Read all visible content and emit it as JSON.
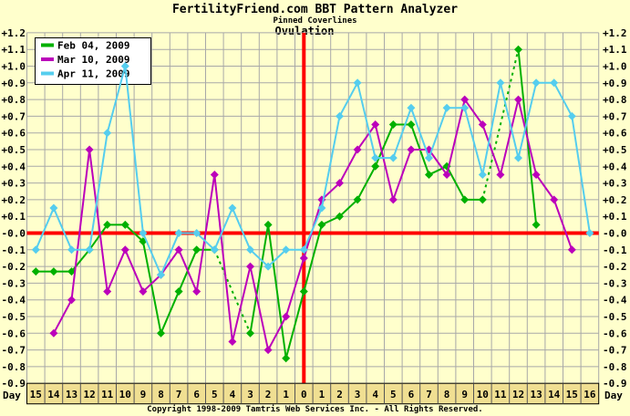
{
  "header": {
    "title": "FertilityFriend.com BBT Pattern Analyzer",
    "subtitle": "Pinned Coverlines",
    "ovulation_label": "Ovulation"
  },
  "axes": {
    "day_label": "Day",
    "y_tick_labels": [
      "+1.2",
      "+1.1",
      "+1.0",
      "+0.9",
      "+0.8",
      "+0.7",
      "+0.6",
      "+0.5",
      "+0.4",
      "+0.3",
      "+0.2",
      "+0.1",
      "-0.0",
      "-0.1",
      "-0.2",
      "-0.3",
      "-0.4",
      "-0.5",
      "-0.6",
      "-0.7",
      "-0.8",
      "-0.9"
    ]
  },
  "footer": {
    "copyright": "Copyright 1998-2009 Tamtris Web Services Inc. - All Rights Reserved."
  },
  "colors": {
    "background": "#ffffcc",
    "gridline": "#a8a8a8",
    "red_line": "#ff0000",
    "axis_strip": "#f0df92",
    "legend_bg": "#ffffff",
    "text": "#000000"
  },
  "chart_data": {
    "type": "line",
    "title": "FertilityFriend.com BBT Pattern Analyzer",
    "subtitle": "Pinned Coverlines",
    "annotation": "Ovulation",
    "xlabel": "Day",
    "ylim": [
      -0.9,
      1.2
    ],
    "y_step": 0.1,
    "grid": true,
    "legend_position": "top-left",
    "coverline_value": 0.0,
    "ovulation_day_index": 15,
    "categories": [
      "15",
      "14",
      "13",
      "12",
      "11",
      "10",
      "9",
      "8",
      "7",
      "6",
      "5",
      "4",
      "3",
      "2",
      "1",
      "0",
      "1",
      "2",
      "3",
      "4",
      "5",
      "6",
      "7",
      "8",
      "9",
      "10",
      "11",
      "12",
      "13",
      "14",
      "15",
      "16"
    ],
    "series": [
      {
        "name": "Feb 04, 2009",
        "color": "#00b000",
        "values": [
          -0.23,
          -0.23,
          -0.23,
          -0.1,
          0.05,
          0.05,
          -0.05,
          -0.6,
          -0.35,
          -0.1,
          -0.1,
          null,
          -0.6,
          0.05,
          -0.75,
          -0.35,
          0.05,
          0.1,
          0.2,
          0.4,
          0.65,
          0.65,
          0.35,
          0.4,
          0.2,
          0.2,
          null,
          1.1,
          0.05,
          null,
          null,
          null
        ]
      },
      {
        "name": "Mar 10, 2009",
        "color": "#bb00bb",
        "values": [
          null,
          -0.6,
          -0.4,
          0.5,
          -0.35,
          -0.1,
          -0.35,
          -0.25,
          -0.1,
          -0.35,
          0.35,
          -0.65,
          -0.2,
          -0.7,
          -0.5,
          -0.15,
          0.2,
          0.3,
          0.5,
          0.65,
          0.2,
          0.5,
          0.5,
          0.35,
          0.8,
          0.65,
          0.35,
          0.8,
          0.35,
          0.2,
          -0.1,
          null
        ]
      },
      {
        "name": "Apr 11, 2009",
        "color": "#55cdee",
        "values": [
          -0.1,
          0.15,
          -0.1,
          -0.1,
          0.6,
          1.0,
          0.0,
          -0.25,
          0.0,
          0.0,
          -0.1,
          0.15,
          -0.1,
          -0.2,
          -0.1,
          -0.1,
          0.15,
          0.7,
          0.9,
          0.45,
          0.45,
          0.75,
          0.45,
          0.75,
          0.75,
          0.35,
          0.9,
          0.45,
          0.9,
          0.9,
          0.7,
          0.0
        ]
      }
    ]
  }
}
